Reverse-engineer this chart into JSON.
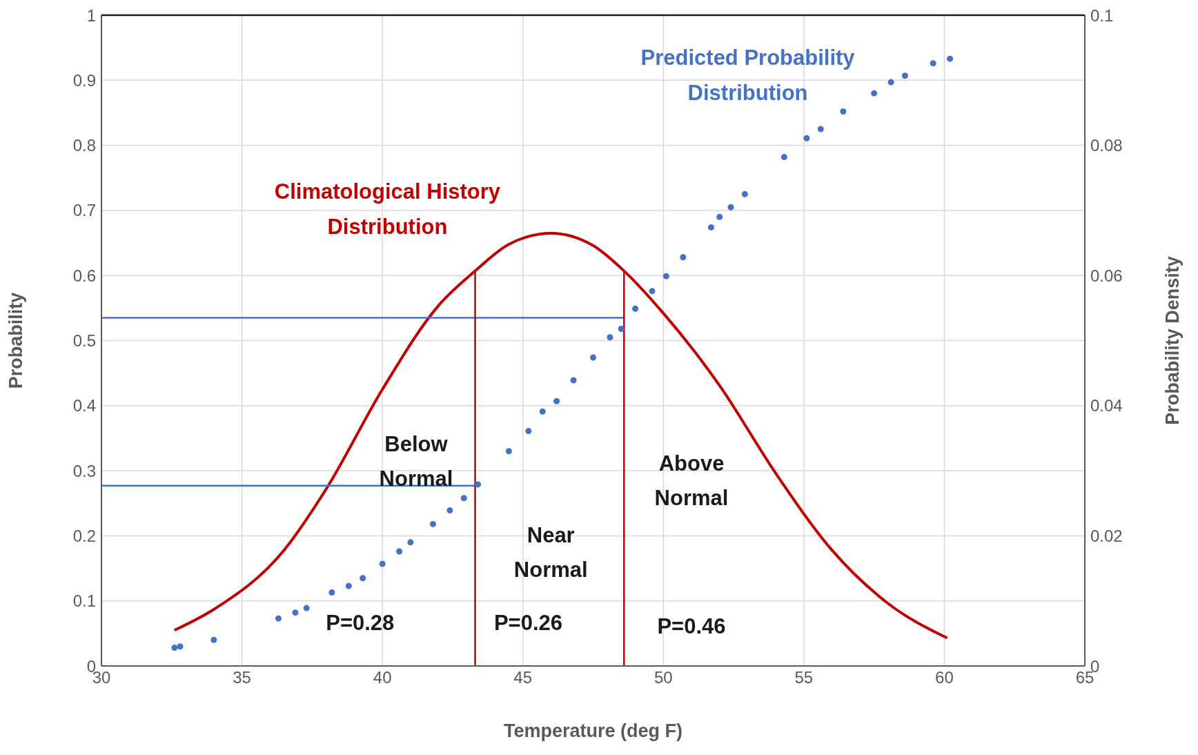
{
  "chart_data": {
    "type": "scatter",
    "xlabel": "Temperature (deg F)",
    "ylabel": "Probability",
    "y2label": "Probability Density",
    "xlim": [
      30,
      65
    ],
    "xticks": [
      30,
      35,
      40,
      45,
      50,
      55,
      60,
      65
    ],
    "ylim": [
      0,
      1
    ],
    "yticks": [
      0,
      0.1,
      0.2,
      0.3,
      0.4,
      0.5,
      0.6,
      0.7,
      0.8,
      0.9,
      1
    ],
    "y2lim": [
      0,
      0.1
    ],
    "y2ticks": [
      0,
      0.02,
      0.04,
      0.06,
      0.08,
      0.1
    ],
    "grid": true,
    "legend": false,
    "series": [
      {
        "type": "line",
        "name": "Climatological History Distribution",
        "color": "#c00000",
        "axis": "y2",
        "marker": "none",
        "x": [
          32.6,
          34,
          36.5,
          38,
          40,
          42,
          43.3,
          44.5,
          46,
          47.5,
          48.6,
          50,
          52,
          54,
          56,
          58,
          60.1
        ],
        "values": [
          0.0055,
          0.0087,
          0.0178,
          0.0272,
          0.0425,
          0.0554,
          0.0607,
          0.0648,
          0.0665,
          0.0646,
          0.0607,
          0.0542,
          0.0431,
          0.0296,
          0.0178,
          0.0096,
          0.0043
        ]
      },
      {
        "type": "scatter",
        "name": "Predicted Probability Distribution",
        "color": "#4472c4",
        "marker": "circle",
        "x": [
          32.6,
          32.8,
          34.0,
          36.3,
          36.9,
          37.3,
          38.2,
          38.8,
          39.3,
          40.0,
          40.6,
          41.0,
          41.8,
          42.4,
          42.9,
          43.4,
          44.5,
          45.2,
          45.7,
          46.2,
          46.8,
          47.5,
          48.1,
          48.5,
          49.0,
          49.6,
          50.1,
          50.7,
          51.7,
          52.0,
          52.4,
          52.9,
          54.3,
          55.1,
          55.6,
          56.4,
          57.5,
          58.1,
          58.6,
          59.6,
          60.2
        ],
        "values": [
          0.028,
          0.03,
          0.04,
          0.073,
          0.082,
          0.089,
          0.113,
          0.123,
          0.135,
          0.157,
          0.176,
          0.19,
          0.218,
          0.239,
          0.258,
          0.279,
          0.33,
          0.361,
          0.391,
          0.407,
          0.439,
          0.474,
          0.505,
          0.518,
          0.549,
          0.576,
          0.599,
          0.628,
          0.674,
          0.69,
          0.705,
          0.725,
          0.782,
          0.811,
          0.825,
          0.852,
          0.88,
          0.897,
          0.907,
          0.926,
          0.933
        ]
      },
      {
        "type": "line",
        "color": "#4472c4",
        "marker": "none",
        "x": [
          30,
          48.6
        ],
        "values": [
          0.535,
          0.535
        ]
      },
      {
        "type": "line",
        "color": "#4472c4",
        "marker": "none",
        "x": [
          30,
          43.3
        ],
        "values": [
          0.277,
          0.277
        ]
      },
      {
        "type": "line",
        "color": "#c00000",
        "axis": "y2",
        "marker": "none",
        "x": [
          43.3,
          43.3
        ],
        "values": [
          0,
          0.0607
        ]
      },
      {
        "type": "line",
        "color": "#c00000",
        "axis": "y2",
        "marker": "none",
        "x": [
          48.6,
          48.6
        ],
        "values": [
          0,
          0.0607
        ]
      }
    ],
    "annotations": [
      "Below Normal",
      "Near Normal",
      "Above Normal",
      "P=0.28",
      "P=0.26",
      "P=0.46"
    ]
  }
}
